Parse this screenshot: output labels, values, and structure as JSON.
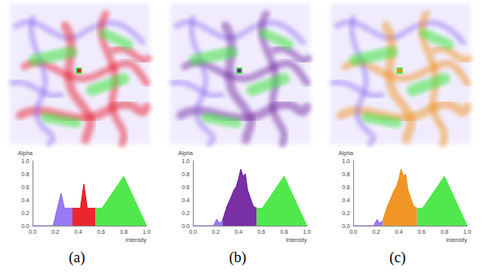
{
  "chart_data": [
    {
      "type": "area",
      "title": "(a)",
      "x_label": "Intensity",
      "y_label": "Alpha",
      "xlim": [
        0,
        1
      ],
      "ylim": [
        0,
        1
      ],
      "xticks": [
        {
          "value": 0,
          "label": "0.0"
        },
        0.2,
        0.4,
        0.6,
        0.8,
        {
          "value": 1,
          "label": "1.0"
        }
      ],
      "yticks": [
        {
          "value": 0,
          "label": "0.0"
        },
        0.2,
        0.4,
        0.6,
        0.8,
        {
          "value": 1,
          "label": "1.0"
        }
      ],
      "grid": false,
      "series": [
        {
          "color": "#8c6cf0",
          "x": [
            0,
            0.18,
            0.25,
            0.28,
            0.35
          ],
          "values": [
            0,
            0,
            0.5,
            0.27,
            0.27
          ]
        },
        {
          "color": "#e8101a",
          "x": [
            0.35,
            0.42,
            0.45,
            0.48,
            0.55
          ],
          "values": [
            0.27,
            0.27,
            0.64,
            0.27,
            0.27
          ]
        },
        {
          "color": "#3ee63a",
          "x": [
            0.55,
            0.61,
            0.8,
            1.0
          ],
          "values": [
            0.27,
            0.27,
            0.76,
            0
          ]
        }
      ]
    },
    {
      "type": "area",
      "title": "(b)",
      "x_label": "Intensity",
      "y_label": "Alpha",
      "xlim": [
        0,
        1
      ],
      "ylim": [
        0,
        1
      ],
      "xticks": [
        {
          "value": 0,
          "label": "0.0"
        },
        0.2,
        0.4,
        0.6,
        0.8,
        {
          "value": 1,
          "label": "1.0"
        }
      ],
      "yticks": [
        {
          "value": 0,
          "label": "0.0"
        },
        0.2,
        0.4,
        0.6,
        0.8,
        {
          "value": 1,
          "label": "1.0"
        }
      ],
      "grid": false,
      "series": [
        {
          "color": "#8c6cf0",
          "x": [
            0,
            0.18,
            0.21,
            0.23,
            0.26
          ],
          "values": [
            0,
            0,
            0.1,
            0.04,
            0.08
          ]
        },
        {
          "color": "#6a1a9a",
          "x": [
            0.26,
            0.3,
            0.33,
            0.36,
            0.38,
            0.4,
            0.42,
            0.44,
            0.46,
            0.48,
            0.5,
            0.53,
            0.56
          ],
          "values": [
            0.08,
            0.3,
            0.42,
            0.55,
            0.6,
            0.72,
            0.87,
            0.76,
            0.8,
            0.55,
            0.45,
            0.3,
            0.27
          ]
        },
        {
          "color": "#3ee63a",
          "x": [
            0.56,
            0.61,
            0.8,
            1.0
          ],
          "values": [
            0.27,
            0.27,
            0.76,
            0
          ]
        }
      ]
    },
    {
      "type": "area",
      "title": "(c)",
      "x_label": "Intensity",
      "y_label": "Alpha",
      "xlim": [
        0,
        1
      ],
      "ylim": [
        0,
        1
      ],
      "xticks": [
        {
          "value": 0,
          "label": "0.0"
        },
        0.2,
        0.4,
        0.6,
        0.8,
        {
          "value": 1,
          "label": "1.0"
        }
      ],
      "yticks": [
        {
          "value": 0,
          "label": "0.0"
        },
        0.2,
        0.4,
        0.6,
        0.8,
        {
          "value": 1,
          "label": "1.0"
        }
      ],
      "grid": false,
      "series": [
        {
          "color": "#8c6cf0",
          "x": [
            0,
            0.18,
            0.21,
            0.23,
            0.26
          ],
          "values": [
            0,
            0,
            0.1,
            0.04,
            0.08
          ]
        },
        {
          "color": "#f08a10",
          "x": [
            0.26,
            0.3,
            0.33,
            0.36,
            0.38,
            0.4,
            0.42,
            0.44,
            0.46,
            0.48,
            0.5,
            0.53,
            0.56
          ],
          "values": [
            0.08,
            0.3,
            0.42,
            0.55,
            0.6,
            0.72,
            0.87,
            0.76,
            0.8,
            0.55,
            0.45,
            0.3,
            0.27
          ]
        },
        {
          "color": "#3ee63a",
          "x": [
            0.56,
            0.61,
            0.8,
            1.0
          ],
          "values": [
            0.27,
            0.27,
            0.76,
            0
          ]
        }
      ]
    }
  ]
}
